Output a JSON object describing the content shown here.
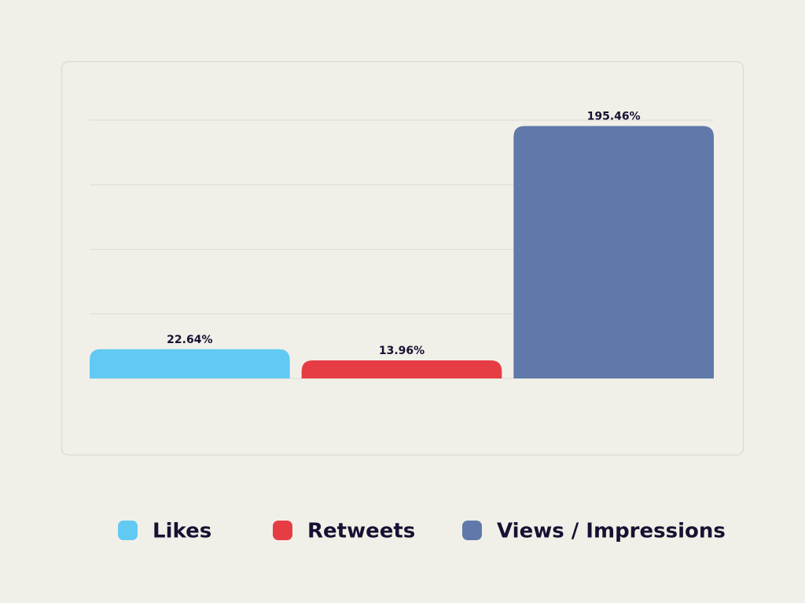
{
  "chart_data": {
    "type": "bar",
    "series": [
      {
        "name": "Likes",
        "color": "#62c9f2",
        "values": [
          22.64
        ],
        "value_labels": [
          "22.64%"
        ]
      },
      {
        "name": "Retweets",
        "color": "#e63d45",
        "values": [
          13.96
        ],
        "value_labels": [
          "13.96%"
        ]
      },
      {
        "name": "Views / Impressions",
        "color": "#6079aa",
        "values": [
          195.46
        ],
        "value_labels": [
          "195.46%"
        ]
      }
    ],
    "ylim": [
      0,
      200
    ],
    "yticks": [
      0,
      50,
      100,
      150,
      200
    ],
    "grid": true,
    "legend": "bottom"
  }
}
